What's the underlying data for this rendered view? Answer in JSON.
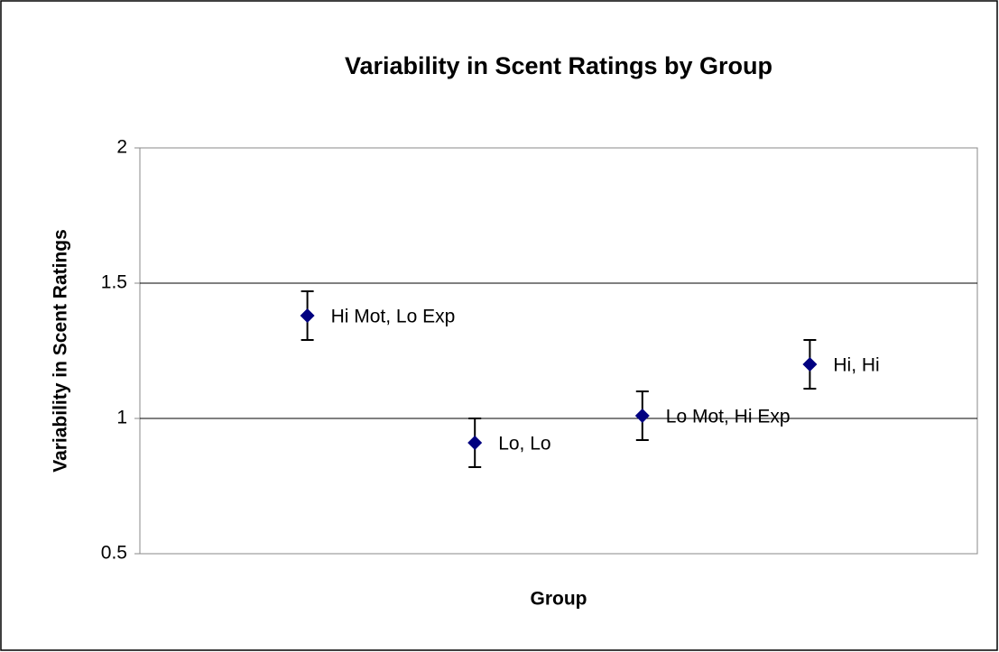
{
  "chart_data": {
    "type": "scatter",
    "title": "Variability in Scent Ratings by Group",
    "x_label": "Group",
    "y_label": "Variability in Scent Ratings",
    "labels": [
      "Hi Mot, Lo Exp",
      "Lo, Lo",
      "Lo Mot, Hi Exp",
      "Hi, Hi"
    ],
    "x": [
      1,
      2,
      3,
      4
    ],
    "xlim": [
      0,
      5
    ],
    "values": [
      1.38,
      0.91,
      1.01,
      1.2
    ],
    "errors": [
      0.09,
      0.09,
      0.09,
      0.09
    ],
    "color": "#000080",
    "ylim": [
      0.5,
      2
    ],
    "yticks": [
      0.5,
      1,
      1.5,
      2
    ],
    "grid": true
  }
}
